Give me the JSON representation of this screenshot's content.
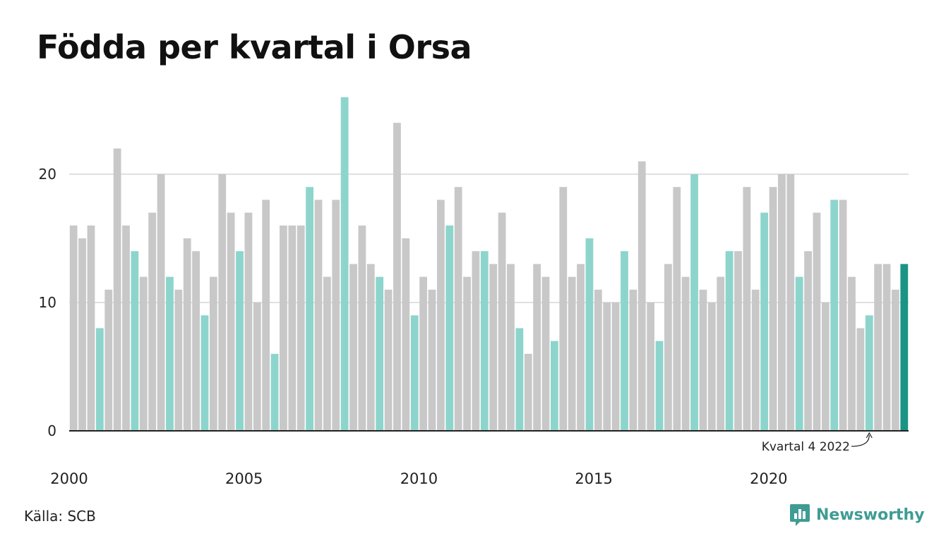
{
  "title": "Födda per kvartal i Orsa",
  "source": "Källa: SCB",
  "brand": {
    "name": "Newsworthy",
    "icon": "newsworthy-logo-icon"
  },
  "colors": {
    "q4_highlight": "#8dd5cc",
    "other_quarters": "#c8c8c8",
    "latest": "#1a9484",
    "gridline": "#e0e0e0",
    "axis": "#222222"
  },
  "chart_data": {
    "type": "bar",
    "title": "Födda per kvartal i Orsa",
    "xlabel": "",
    "ylabel": "",
    "ylim": [
      0,
      26
    ],
    "yticks": [
      0,
      10,
      20
    ],
    "xticks": [
      "2000",
      "2005",
      "2010",
      "2015",
      "2020"
    ],
    "grid": true,
    "annotation": {
      "text": "Kvartal 4 2022",
      "target_index": 91
    },
    "start": "2000 Q1",
    "quarters": [
      "Q1",
      "Q2",
      "Q3",
      "Q4"
    ],
    "values": [
      16,
      15,
      16,
      8,
      11,
      22,
      16,
      14,
      12,
      17,
      20,
      12,
      11,
      15,
      14,
      9,
      12,
      20,
      17,
      14,
      17,
      10,
      18,
      6,
      16,
      16,
      16,
      19,
      18,
      12,
      18,
      26,
      13,
      16,
      13,
      12,
      11,
      24,
      15,
      9,
      12,
      11,
      18,
      16,
      19,
      12,
      14,
      14,
      13,
      17,
      13,
      8,
      6,
      13,
      12,
      7,
      19,
      12,
      13,
      15,
      11,
      10,
      10,
      14,
      11,
      21,
      10,
      7,
      13,
      19,
      12,
      20,
      11,
      10,
      12,
      14,
      14,
      19,
      11,
      17,
      19,
      20,
      20,
      12,
      14,
      17,
      10,
      18,
      18,
      12,
      8,
      9,
      13,
      13,
      11,
      13
    ]
  }
}
